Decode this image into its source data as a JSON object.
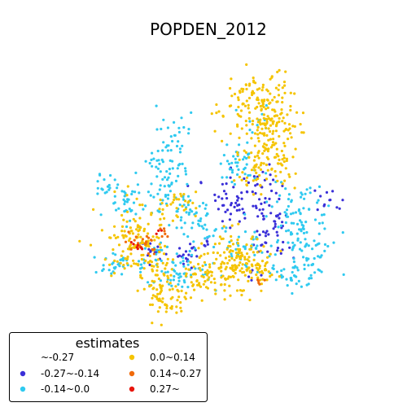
{
  "chart_data": {
    "type": "scatter",
    "title": "POPDEN_2012",
    "xlabel": "",
    "ylabel": "",
    "axes_visible": false,
    "legend": {
      "title": "estimates",
      "placement": "lower-left",
      "columns": 2,
      "entries": [
        {
          "label": "~-0.27",
          "color": "#3a2fd8"
        },
        {
          "label": "-0.27~-0.14",
          "color": "#3a2fd8"
        },
        {
          "label": "-0.14~0.0",
          "color": "#2fcaf0"
        },
        {
          "label": "0.0~0.14",
          "color": "#f5c400"
        },
        {
          "label": "0.14~0.27",
          "color": "#f06a0a"
        },
        {
          "label": "0.27~",
          "color": "#e8150c"
        }
      ]
    },
    "series": [
      {
        "name": "-0.27~-0.14",
        "color": "#3a2fd8",
        "clusters": [
          {
            "cx": 0.56,
            "cy": 0.52,
            "rx": 0.025,
            "ry": 0.035,
            "n": 40
          },
          {
            "cx": 0.64,
            "cy": 0.5,
            "rx": 0.025,
            "ry": 0.04,
            "n": 40
          },
          {
            "cx": 0.65,
            "cy": 0.59,
            "rx": 0.02,
            "ry": 0.025,
            "n": 15
          },
          {
            "cx": 0.69,
            "cy": 0.57,
            "rx": 0.01,
            "ry": 0.015,
            "n": 8
          },
          {
            "cx": 0.82,
            "cy": 0.52,
            "rx": 0.02,
            "ry": 0.02,
            "n": 12
          },
          {
            "cx": 0.4,
            "cy": 0.67,
            "rx": 0.03,
            "ry": 0.02,
            "n": 15
          },
          {
            "cx": 0.44,
            "cy": 0.66,
            "rx": 0.015,
            "ry": 0.015,
            "n": 8
          },
          {
            "cx": 0.33,
            "cy": 0.65,
            "rx": 0.02,
            "ry": 0.015,
            "n": 12
          },
          {
            "cx": 0.49,
            "cy": 0.63,
            "rx": 0.01,
            "ry": 0.01,
            "n": 6
          },
          {
            "cx": 0.68,
            "cy": 0.65,
            "rx": 0.03,
            "ry": 0.015,
            "n": 12
          },
          {
            "cx": 0.61,
            "cy": 0.72,
            "rx": 0.015,
            "ry": 0.015,
            "n": 6
          },
          {
            "cx": 0.47,
            "cy": 0.46,
            "rx": 0.01,
            "ry": 0.015,
            "n": 3
          }
        ]
      },
      {
        "name": "-0.14~0.0",
        "color": "#2fcaf0",
        "clusters": [
          {
            "cx": 0.21,
            "cy": 0.48,
            "rx": 0.015,
            "ry": 0.015,
            "n": 15
          },
          {
            "cx": 0.27,
            "cy": 0.52,
            "rx": 0.04,
            "ry": 0.03,
            "n": 45
          },
          {
            "cx": 0.38,
            "cy": 0.43,
            "rx": 0.03,
            "ry": 0.05,
            "n": 70
          },
          {
            "cx": 0.41,
            "cy": 0.33,
            "rx": 0.015,
            "ry": 0.02,
            "n": 12
          },
          {
            "cx": 0.44,
            "cy": 0.55,
            "rx": 0.04,
            "ry": 0.04,
            "n": 50
          },
          {
            "cx": 0.57,
            "cy": 0.41,
            "rx": 0.03,
            "ry": 0.03,
            "n": 40
          },
          {
            "cx": 0.62,
            "cy": 0.29,
            "rx": 0.02,
            "ry": 0.02,
            "n": 10
          },
          {
            "cx": 0.75,
            "cy": 0.57,
            "rx": 0.045,
            "ry": 0.05,
            "n": 90
          },
          {
            "cx": 0.75,
            "cy": 0.69,
            "rx": 0.035,
            "ry": 0.035,
            "n": 50
          },
          {
            "cx": 0.41,
            "cy": 0.71,
            "rx": 0.05,
            "ry": 0.025,
            "n": 55
          },
          {
            "cx": 0.24,
            "cy": 0.69,
            "rx": 0.035,
            "ry": 0.02,
            "n": 30
          },
          {
            "cx": 0.6,
            "cy": 0.64,
            "rx": 0.05,
            "ry": 0.03,
            "n": 40
          },
          {
            "cx": 0.69,
            "cy": 0.72,
            "rx": 0.03,
            "ry": 0.015,
            "n": 20
          },
          {
            "cx": 0.35,
            "cy": 0.67,
            "rx": 0.03,
            "ry": 0.02,
            "n": 25
          },
          {
            "cx": 0.49,
            "cy": 0.6,
            "rx": 0.015,
            "ry": 0.015,
            "n": 8
          }
        ]
      },
      {
        "name": "0.0~0.14",
        "color": "#f5c400",
        "clusters": [
          {
            "cx": 0.62,
            "cy": 0.26,
            "rx": 0.055,
            "ry": 0.05,
            "n": 120
          },
          {
            "cx": 0.66,
            "cy": 0.38,
            "rx": 0.04,
            "ry": 0.05,
            "n": 90
          },
          {
            "cx": 0.61,
            "cy": 0.45,
            "rx": 0.025,
            "ry": 0.03,
            "n": 20
          },
          {
            "cx": 0.69,
            "cy": 0.42,
            "rx": 0.015,
            "ry": 0.02,
            "n": 12
          },
          {
            "cx": 0.29,
            "cy": 0.62,
            "rx": 0.04,
            "ry": 0.045,
            "n": 110
          },
          {
            "cx": 0.35,
            "cy": 0.69,
            "rx": 0.025,
            "ry": 0.03,
            "n": 40
          },
          {
            "cx": 0.37,
            "cy": 0.77,
            "rx": 0.03,
            "ry": 0.035,
            "n": 70
          },
          {
            "cx": 0.49,
            "cy": 0.72,
            "rx": 0.04,
            "ry": 0.025,
            "n": 70
          },
          {
            "cx": 0.57,
            "cy": 0.67,
            "rx": 0.04,
            "ry": 0.04,
            "n": 120
          },
          {
            "cx": 0.63,
            "cy": 0.71,
            "rx": 0.025,
            "ry": 0.015,
            "n": 30
          },
          {
            "cx": 0.41,
            "cy": 0.53,
            "rx": 0.025,
            "ry": 0.02,
            "n": 25
          },
          {
            "cx": 0.61,
            "cy": 0.22,
            "rx": 0.02,
            "ry": 0.02,
            "n": 15
          },
          {
            "cx": 0.65,
            "cy": 0.29,
            "rx": 0.03,
            "ry": 0.03,
            "n": 40
          },
          {
            "cx": 0.36,
            "cy": 0.53,
            "rx": 0.01,
            "ry": 0.01,
            "n": 6
          },
          {
            "cx": 0.58,
            "cy": 0.76,
            "rx": 0.01,
            "ry": 0.01,
            "n": 4
          }
        ]
      },
      {
        "name": "0.14~0.27",
        "color": "#f06a0a",
        "clusters": [
          {
            "cx": 0.31,
            "cy": 0.63,
            "rx": 0.025,
            "ry": 0.015,
            "n": 20
          },
          {
            "cx": 0.36,
            "cy": 0.6,
            "rx": 0.008,
            "ry": 0.008,
            "n": 5
          },
          {
            "cx": 0.63,
            "cy": 0.73,
            "rx": 0.008,
            "ry": 0.008,
            "n": 5
          }
        ]
      },
      {
        "name": "0.27~",
        "color": "#e8150c",
        "clusters": [
          {
            "cx": 0.3,
            "cy": 0.64,
            "rx": 0.01,
            "ry": 0.01,
            "n": 7
          },
          {
            "cx": 0.35,
            "cy": 0.6,
            "rx": 0.005,
            "ry": 0.005,
            "n": 3
          }
        ]
      }
    ]
  }
}
